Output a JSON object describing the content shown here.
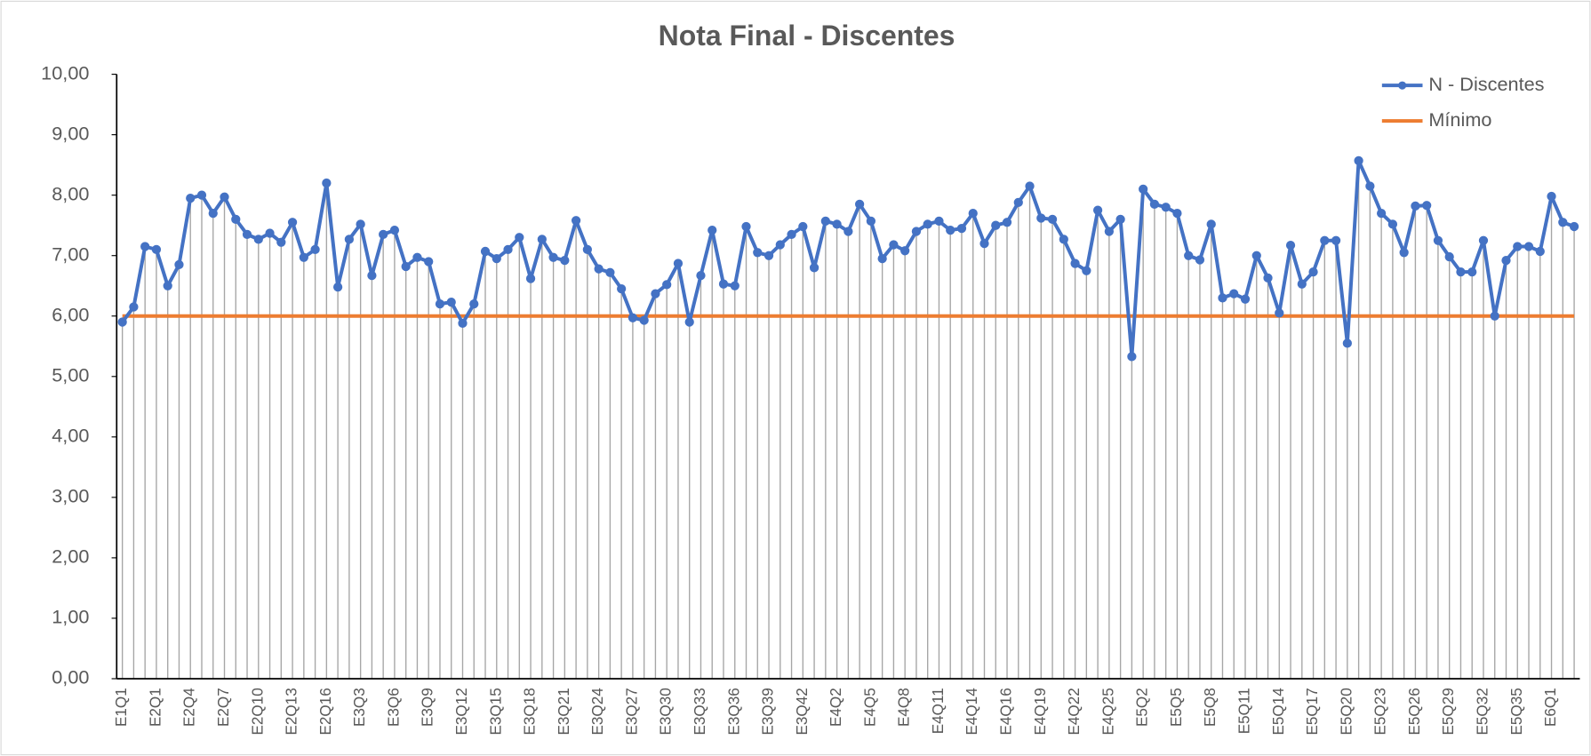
{
  "chart_data": {
    "type": "line",
    "title": "Nota Final - Discentes",
    "categories": [
      "E1Q1",
      null,
      null,
      "E2Q1",
      null,
      null,
      "E2Q4",
      null,
      null,
      "E2Q7",
      null,
      null,
      "E2Q10",
      null,
      null,
      "E2Q13",
      null,
      null,
      "E2Q16",
      null,
      null,
      "E3Q3",
      null,
      null,
      "E3Q6",
      null,
      null,
      "E3Q9",
      null,
      null,
      "E3Q12",
      null,
      null,
      "E3Q15",
      null,
      null,
      "E3Q18",
      null,
      null,
      "E3Q21",
      null,
      null,
      "E3Q24",
      null,
      null,
      "E3Q27",
      null,
      null,
      "E3Q30",
      null,
      null,
      "E3Q33",
      null,
      null,
      "E3Q36",
      null,
      null,
      "E3Q39",
      null,
      null,
      "E3Q42",
      null,
      null,
      "E4Q2",
      null,
      null,
      "E4Q5",
      null,
      null,
      "E4Q8",
      null,
      null,
      "E4Q11",
      null,
      null,
      "E4Q14",
      null,
      null,
      "E4Q16",
      null,
      null,
      "E4Q19",
      null,
      null,
      "E4Q22",
      null,
      null,
      "E4Q25",
      null,
      null,
      "E5Q2",
      null,
      null,
      "E5Q5",
      null,
      null,
      "E5Q8",
      null,
      null,
      "E5Q11",
      null,
      null,
      "E5Q14",
      null,
      null,
      "E5Q17",
      null,
      null,
      "E5Q20",
      null,
      null,
      "E5Q23",
      null,
      null,
      "E5Q26",
      null,
      null,
      "E5Q29",
      null,
      null,
      "E5Q32",
      null,
      null,
      "E5Q35",
      null,
      null,
      "E6Q1",
      null,
      null
    ],
    "series": [
      {
        "name": "N - Discentes",
        "color": "#4472c4",
        "markers": true,
        "drop_lines": true,
        "values": [
          5.9,
          6.15,
          7.15,
          7.1,
          6.5,
          6.85,
          7.95,
          8.0,
          7.7,
          7.97,
          7.6,
          7.35,
          7.27,
          7.37,
          7.22,
          7.55,
          6.97,
          7.1,
          8.2,
          6.48,
          7.27,
          7.52,
          6.67,
          7.35,
          7.42,
          6.82,
          6.97,
          6.9,
          6.2,
          6.23,
          5.88,
          6.2,
          7.07,
          6.95,
          7.1,
          7.3,
          6.62,
          7.27,
          6.97,
          6.92,
          7.58,
          7.1,
          6.78,
          6.72,
          6.45,
          5.97,
          5.93,
          6.37,
          6.52,
          6.87,
          5.9,
          6.67,
          7.42,
          6.53,
          6.5,
          7.48,
          7.05,
          7.0,
          7.18,
          7.35,
          7.48,
          6.8,
          7.57,
          7.52,
          7.4,
          7.85,
          7.57,
          6.95,
          7.18,
          7.08,
          7.4,
          7.52,
          7.57,
          7.42,
          7.45,
          7.7,
          7.2,
          7.5,
          7.55,
          7.88,
          8.15,
          7.62,
          7.6,
          7.27,
          6.87,
          6.75,
          7.75,
          7.4,
          7.6,
          5.33,
          8.1,
          7.85,
          7.8,
          7.7,
          7.0,
          6.93,
          7.52,
          6.3,
          6.37,
          6.28,
          7.0,
          6.63,
          6.05,
          7.17,
          6.53,
          6.73,
          7.25,
          7.25,
          5.55,
          8.57,
          8.15,
          7.7,
          7.52,
          7.05,
          7.82,
          7.83,
          7.25,
          6.98,
          6.73,
          6.73,
          7.25,
          6.0,
          6.92,
          7.15,
          7.15,
          7.07,
          7.98,
          7.55,
          7.48
        ]
      },
      {
        "name": "Mínimo",
        "color": "#ed7d31",
        "markers": false,
        "drop_lines": false,
        "values": [
          6,
          6,
          6,
          6,
          6,
          6,
          6,
          6,
          6,
          6,
          6,
          6,
          6,
          6,
          6,
          6,
          6,
          6,
          6,
          6,
          6,
          6,
          6,
          6,
          6,
          6,
          6,
          6,
          6,
          6,
          6,
          6,
          6,
          6,
          6,
          6,
          6,
          6,
          6,
          6,
          6,
          6,
          6,
          6,
          6,
          6,
          6,
          6,
          6,
          6,
          6,
          6,
          6,
          6,
          6,
          6,
          6,
          6,
          6,
          6,
          6,
          6,
          6,
          6,
          6,
          6,
          6,
          6,
          6,
          6,
          6,
          6,
          6,
          6,
          6,
          6,
          6,
          6,
          6,
          6,
          6,
          6,
          6,
          6,
          6,
          6,
          6,
          6,
          6,
          6,
          6,
          6,
          6,
          6,
          6,
          6,
          6,
          6,
          6,
          6,
          6,
          6,
          6,
          6,
          6,
          6,
          6,
          6,
          6,
          6,
          6,
          6,
          6,
          6,
          6,
          6,
          6,
          6,
          6,
          6,
          6,
          6,
          6,
          6,
          6,
          6,
          6,
          6,
          6
        ]
      }
    ],
    "ylim": [
      0,
      10
    ],
    "yticks": [
      {
        "value": 0,
        "label": "0,00"
      },
      {
        "value": 1,
        "label": "1,00"
      },
      {
        "value": 2,
        "label": "2,00"
      },
      {
        "value": 3,
        "label": "3,00"
      },
      {
        "value": 4,
        "label": "4,00"
      },
      {
        "value": 5,
        "label": "5,00"
      },
      {
        "value": 6,
        "label": "6,00"
      },
      {
        "value": 7,
        "label": "7,00"
      },
      {
        "value": 8,
        "label": "8,00"
      },
      {
        "value": 9,
        "label": "9,00"
      },
      {
        "value": 10,
        "label": "10,00"
      }
    ],
    "grid": false,
    "legend": "top-right"
  }
}
